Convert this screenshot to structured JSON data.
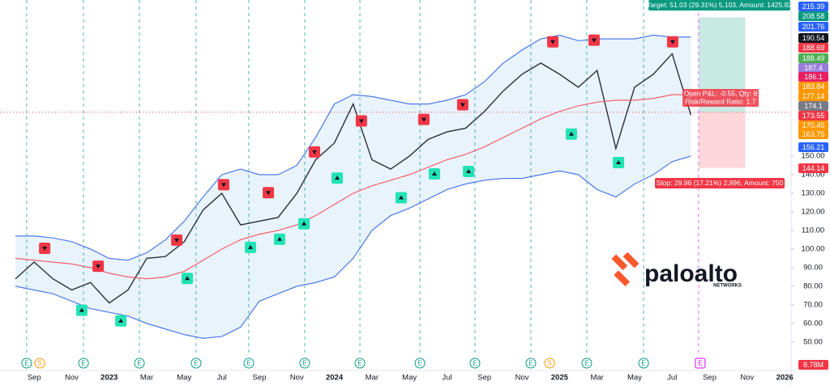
{
  "chart_data": {
    "type": "line",
    "categories": [
      null,
      "Sep",
      null,
      "Nov",
      null,
      "2023",
      null,
      "Mar",
      null,
      "May",
      null,
      "Jul",
      null,
      "Sep",
      null,
      "Nov",
      null,
      "2024",
      null,
      "Mar",
      null,
      "May",
      null,
      "Jul",
      null,
      "Sep",
      null,
      "Nov",
      null,
      "2025",
      null,
      "Mar",
      null,
      "May",
      null,
      "Jul",
      null,
      "Sep",
      null,
      "Nov",
      null,
      "2026"
    ],
    "ylim": [
      40.4,
      233.9
    ],
    "yticks": [
      {
        "value": 50,
        "label": "50.00"
      },
      {
        "value": 60,
        "label": "60.00"
      },
      {
        "value": 70,
        "label": "70.00"
      },
      {
        "value": 80,
        "label": "80.00"
      },
      {
        "value": 90,
        "label": "90.00"
      },
      {
        "value": 100,
        "label": "100.00"
      },
      {
        "value": 110,
        "label": "110.00"
      },
      {
        "value": 120,
        "label": "120.00"
      },
      {
        "value": 130,
        "label": "130.00"
      },
      {
        "value": 140,
        "label": "140.00"
      },
      {
        "value": 150,
        "label": "150.00"
      }
    ],
    "grid": false,
    "band_fill": "#e9f3fb",
    "series": [
      {
        "color": "#2a2e39",
        "values": [
          84,
          93,
          84,
          78,
          82,
          71,
          78,
          95,
          96,
          104,
          121,
          130,
          113,
          115,
          117,
          130,
          148,
          157,
          178,
          148,
          143,
          150,
          159,
          163,
          165,
          174,
          185,
          194,
          200,
          194,
          187,
          196,
          154,
          187,
          194,
          205,
          172,
          null,
          null,
          null,
          null,
          null
        ]
      },
      {
        "color": "#3d6ee8",
        "values": [
          107,
          107,
          106,
          104,
          100,
          95,
          94,
          98,
          105,
          115,
          128,
          140,
          143,
          140,
          140,
          145,
          160,
          178,
          183,
          182,
          180,
          178,
          178,
          180,
          183,
          190,
          200,
          207,
          213,
          215,
          212,
          213,
          213,
          213,
          215,
          214,
          214,
          null,
          null,
          null,
          null,
          null
        ]
      },
      {
        "color": "#3d6ee8",
        "values": [
          80,
          78,
          76,
          72,
          68,
          66,
          64,
          60,
          57,
          54,
          52,
          53,
          58,
          72,
          76,
          80,
          82,
          85,
          95,
          110,
          118,
          122,
          127,
          132,
          135,
          137,
          138,
          138,
          140,
          142,
          140,
          132,
          128,
          135,
          140,
          147,
          150,
          null,
          null,
          null,
          null,
          null
        ]
      },
      {
        "color": "#f7525f",
        "values": [
          95,
          94,
          93,
          92,
          90,
          87,
          85,
          84,
          85,
          88,
          94,
          100,
          105,
          108,
          110,
          113,
          118,
          124,
          130,
          134,
          137,
          140,
          144,
          148,
          151,
          155,
          160,
          165,
          170,
          174,
          177,
          179,
          180,
          180,
          181,
          183,
          183,
          null,
          null,
          null,
          null,
          null
        ]
      }
    ],
    "sell_signals": {
      "color": "#f23645",
      "x": [
        1.56,
        4.41,
        8.6,
        11.1,
        13.48,
        15.94,
        18.44,
        21.77,
        23.84,
        28.64,
        30.84,
        35.03
      ],
      "values": [
        100.4,
        90.8,
        104.8,
        134.6,
        130.3,
        152.2,
        168.9,
        169.7,
        177.6,
        211.4,
        212.3,
        211.4
      ]
    },
    "buy_signals": {
      "color": "#22e3b5",
      "x": [
        3.54,
        5.62,
        9.16,
        12.53,
        14.08,
        15.38,
        17.15,
        20.56,
        22.33,
        24.15,
        29.63,
        32.14
      ],
      "values": [
        67.1,
        61.4,
        84.2,
        100.9,
        105.3,
        113.6,
        138.2,
        127.6,
        140.4,
        141.7,
        161.8,
        146.5
      ]
    },
    "earnings": {
      "label": "E",
      "color": "#089981",
      "x": [
        0.6,
        3.63,
        6.61,
        9.63,
        12.44,
        15.42,
        18.36,
        21.56,
        24.49,
        27.47,
        30.45,
        33.48
      ]
    },
    "upcoming_earnings": {
      "label": "E",
      "color": "#d500f9",
      "x": 36.41
    },
    "splits": {
      "label": "S",
      "color": "#ff9800",
      "x": [
        1.3,
        28.47
      ]
    },
    "position": {
      "x": [
        36.41,
        38.9
      ],
      "entry": 173.55,
      "target": 224.58,
      "stop": 143.59,
      "target_text": "Target: 51.03 (29.31%) 5,103, Amount: 1425.82",
      "stop_text": "Stop: 29.96 (17.21%) 2,996, Amount: 750",
      "pnl_text": "Open P&L: -0.55, Qty: 8",
      "ratio_text": "Risk/Reward Ratio: 1.7"
    },
    "price_tags": [
      {
        "value": 215.39,
        "color": "#2962ff"
      },
      {
        "value": 208.58,
        "color": "#089981"
      },
      {
        "value": 201.76,
        "color": "#2962ff"
      },
      {
        "value": 190.54,
        "color": "#131722"
      },
      {
        "value": 188.69,
        "color": "#f23645"
      },
      {
        "value": 188.49,
        "color": "#4caf50"
      },
      {
        "value": 187.4,
        "color": "#9c7cdb"
      },
      {
        "value": 186.1,
        "color": "#e91e63"
      },
      {
        "value": 183.84,
        "color": "#ff9800"
      },
      {
        "value": 177.14,
        "color": "#ff9800"
      },
      {
        "value": 174.1,
        "color": "#787b86"
      },
      {
        "value": 173.55,
        "color": "#f23645"
      },
      {
        "value": 170.45,
        "color": "#ff9800"
      },
      {
        "value": 163.75,
        "color": "#ff9800"
      },
      {
        "value": 156.21,
        "color": "#2962ff"
      },
      {
        "value": 144.14,
        "color": "#f23645"
      }
    ],
    "volume_tag": {
      "label": "8.78M",
      "color": "#f23645"
    },
    "logo": {
      "name": "paloalto",
      "sub": "NETWORKS"
    }
  }
}
